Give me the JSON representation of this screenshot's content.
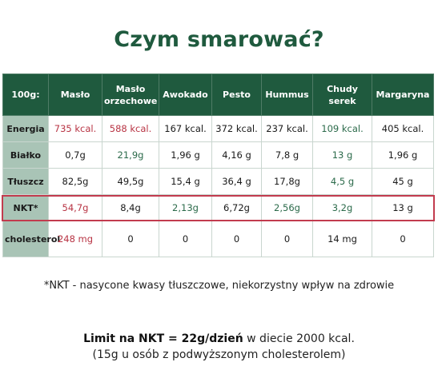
{
  "title": "Czym smarować?",
  "table": {
    "header": [
      "100g:",
      "Masło",
      "Masło orzechowe",
      "Awokado",
      "Pesto",
      "Hummus",
      "Chudy serek",
      "Margaryna"
    ],
    "rows": [
      {
        "label": "Energia",
        "values": [
          "735 kcal.",
          "588 kcal.",
          "167 kcal.",
          "372 kcal.",
          "237 kcal.",
          "109 kcal.",
          "405 kcal."
        ]
      },
      {
        "label": "Białko",
        "values": [
          "0,7g",
          "21,9g",
          "1,96 g",
          "4,16 g",
          "7,8 g",
          "13 g",
          "1,96 g"
        ]
      },
      {
        "label": "Tłuszcz",
        "values": [
          "82,5g",
          "49,5g",
          "15,4 g",
          "36,4 g",
          "17,8g",
          "4,5 g",
          "45 g"
        ]
      },
      {
        "label": "NKT*",
        "values": [
          "54,7g",
          "8,4g",
          "2,13g",
          "6,72g",
          "2,56g",
          "3,2g",
          "13 g"
        ]
      },
      {
        "label": "cholesterol",
        "values": [
          "248 mg",
          "0",
          "0",
          "0",
          "0",
          "14 mg",
          "0"
        ]
      }
    ],
    "colors": {
      "header_bg": "#1f5a3e",
      "label_bg": "#a9c4b6",
      "highlight_red": "#b83444",
      "highlight_green": "#2b6a4a",
      "outline": "#c23b4e"
    }
  },
  "footnote": "*NKT - nasycone kwasy tłuszczowe, niekorzystny wpływ na zdrowie",
  "limit": {
    "bold": "Limit na NKT = 22g/dzień",
    "rest": " w diecie 2000 kcal.",
    "line2": "(15g u osób z podwyższonym cholesterolem)"
  }
}
